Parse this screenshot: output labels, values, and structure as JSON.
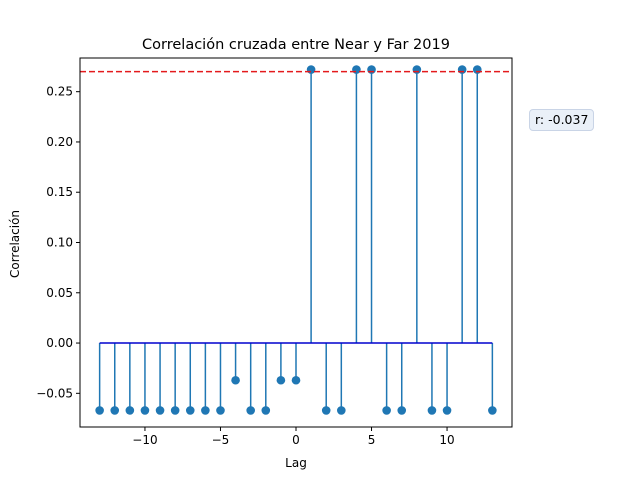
{
  "chart_data": {
    "type": "stem",
    "title": "Correlación cruzada entre Near y Far 2019",
    "xlabel": "Lag",
    "ylabel": "Correlación",
    "xlim": [
      -14.3,
      14.3
    ],
    "ylim": [
      -0.0835,
      0.2835
    ],
    "xticks": [
      -10,
      -5,
      0,
      5,
      10
    ],
    "xtick_labels": [
      "−10",
      "−5",
      "0",
      "5",
      "10"
    ],
    "yticks": [
      -0.05,
      0.0,
      0.05,
      0.1,
      0.15,
      0.2,
      0.25
    ],
    "ytick_labels": [
      "−0.05",
      "0.00",
      "0.05",
      "0.10",
      "0.15",
      "0.20",
      "0.25"
    ],
    "x": [
      -13,
      -12,
      -11,
      -10,
      -9,
      -8,
      -7,
      -6,
      -5,
      -4,
      -3,
      -2,
      -1,
      0,
      1,
      2,
      3,
      4,
      5,
      6,
      7,
      8,
      9,
      10,
      11,
      12,
      13
    ],
    "values": [
      -0.067,
      -0.067,
      -0.067,
      -0.067,
      -0.067,
      -0.067,
      -0.067,
      -0.067,
      -0.067,
      -0.037,
      -0.067,
      -0.067,
      -0.037,
      -0.037,
      0.272,
      -0.067,
      -0.067,
      0.272,
      0.272,
      -0.067,
      -0.067,
      0.272,
      -0.067,
      -0.067,
      0.272,
      0.272,
      -0.067
    ],
    "threshold": 0.27,
    "grid": false,
    "colors": {
      "stem": "#1f77b4",
      "baseline": "#0000cd",
      "threshold": "#e41a1c"
    }
  },
  "annotation": {
    "text": "r: -0.037"
  }
}
